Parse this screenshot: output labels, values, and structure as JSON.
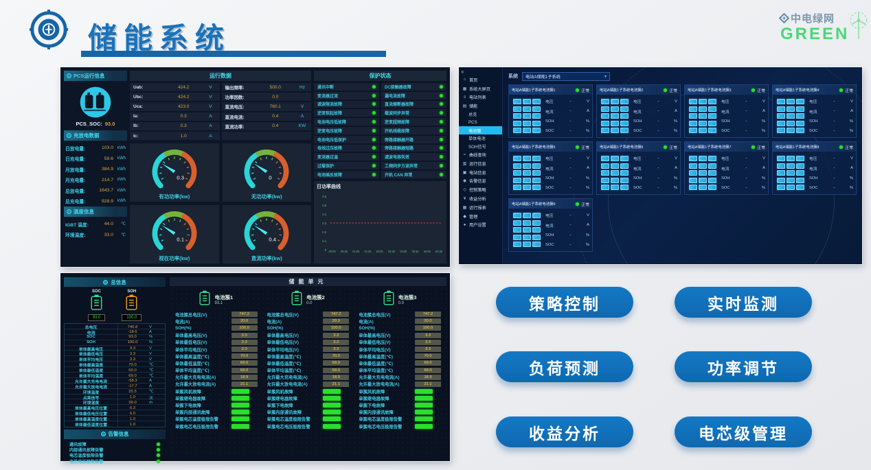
{
  "header": {
    "title": "储能系统",
    "logo_icon": "compass-badge-icon",
    "brand": {
      "icon": "diamond-grid-icon",
      "name": "中电绿网",
      "sub": "GREEN",
      "turbine_icon": "wind-turbine-icon"
    }
  },
  "pcs": {
    "info_header": "PCS运行信息",
    "battery_icon": "battery-circle-icon",
    "soc_label": "PCS_SOC:",
    "soc_value": "93.0",
    "energy_header": "充放电数据",
    "energy_rows": [
      {
        "label": "日放电量:",
        "value": "103.0",
        "unit": "kWh"
      },
      {
        "label": "日充电量:",
        "value": "59.6",
        "unit": "kWh"
      },
      {
        "label": "月放电量:",
        "value": "384.9",
        "unit": "kWh"
      },
      {
        "label": "月充电量:",
        "value": "214.7",
        "unit": "kWh"
      },
      {
        "label": "总放电量:",
        "value": "1643.7",
        "unit": "kWh"
      },
      {
        "label": "总充电量:",
        "value": "928.9",
        "unit": "kWh"
      }
    ],
    "temp_header": "温度信息",
    "temp_rows": [
      {
        "label": "IGBT 温度:",
        "value": "44.0",
        "unit": "℃"
      },
      {
        "label": "环境温度:",
        "value": "33.0",
        "unit": "℃"
      }
    ],
    "run_header": "运行数据",
    "run_left": [
      {
        "label": "Uab:",
        "value": "424.2",
        "unit": "V"
      },
      {
        "label": "Ubc:",
        "value": "424.2",
        "unit": "V"
      },
      {
        "label": "Uca:",
        "value": "423.0",
        "unit": "V"
      },
      {
        "label": "Ia:",
        "value": "0.3",
        "unit": "A"
      },
      {
        "label": "Ib:",
        "value": "0.3",
        "unit": "A"
      },
      {
        "label": "Ic:",
        "value": "1.0",
        "unit": "A"
      }
    ],
    "run_right": [
      {
        "label": "输出频率:",
        "value": "500.0",
        "unit": "Hz"
      },
      {
        "label": "功率因数:",
        "value": "0.0",
        "unit": ""
      },
      {
        "label": "直流电压:",
        "value": "760.1",
        "unit": "V"
      },
      {
        "label": "直流电流:",
        "value": "0.4",
        "unit": "A"
      },
      {
        "label": "直流功率:",
        "value": "0.4",
        "unit": "KW"
      },
      {
        "label": "",
        "value": "",
        "unit": ""
      }
    ],
    "gauges": [
      {
        "label": "有功功率(kw)",
        "value": "0.3"
      },
      {
        "label": "无功功率(kw)",
        "value": "0"
      },
      {
        "label": "视在功率(kw)",
        "value": "0.1"
      },
      {
        "label": "直流功率(kw)",
        "value": "0.4"
      }
    ],
    "protect_header": "保护状态",
    "protect_left": [
      "通讯中断",
      "变流器过流",
      "滤波限流故障",
      "逆变软起故障",
      "电池电压低故障",
      "逆变电压故障",
      "电池电压低保护",
      "母线过压故障",
      "变流器过温",
      "过载保护",
      "电池插反故障"
    ],
    "protect_right": [
      "DC接触器故障",
      "漏电流故障",
      "直流熔断器故障",
      "载波同步异常",
      "逆变超频故障",
      "开机线缆故障",
      "旁路接触器开路",
      "旁路接触器短路",
      "滤波电容失效",
      "工频同步方波异常",
      "开机 CAN 异常"
    ],
    "chart": {
      "type": "line",
      "title": "日功率曲线",
      "x": [
        "00:00",
        "00:30",
        "01:00",
        "01:30",
        "02:00",
        "02:30",
        "03:00",
        "03:30",
        "04:00",
        "04:30"
      ],
      "y_ticks": [
        "0.6",
        "0.5",
        "0.4",
        "0.3",
        "0.2",
        "0.1",
        "0"
      ],
      "ylim": [
        0,
        0.6
      ],
      "series": [
        {
          "name": "日功率",
          "values": [
            0.3,
            0.3,
            0.3,
            0.3,
            0.3,
            0.3,
            0.3,
            0.3,
            0.3,
            0.3
          ],
          "color": "#e03a2e",
          "style": "dashed"
        }
      ]
    }
  },
  "bms": {
    "collapse_icon": "collapse-arrows-icon",
    "collapse_glyph": "«",
    "sidebar": [
      {
        "label": "首页",
        "icon": "home-icon",
        "glyph": "⌂"
      },
      {
        "label": "系统大屏页",
        "icon": "dashboard-icon",
        "glyph": "▦"
      },
      {
        "label": "电站列表",
        "icon": "station-list-icon",
        "glyph": "≡"
      },
      {
        "label": "储能",
        "icon": "storage-icon",
        "glyph": "▤"
      },
      {
        "label": "总览",
        "sub": true
      },
      {
        "label": "PCS",
        "sub": true
      },
      {
        "label": "电池簇",
        "sub": true,
        "active": true
      },
      {
        "label": "单体电池",
        "sub": true
      },
      {
        "label": "SOH信号",
        "sub": true
      },
      {
        "label": "曲线查询",
        "icon": "curve-icon",
        "glyph": "≈"
      },
      {
        "label": "运行信息",
        "icon": "run-info-icon",
        "glyph": "▥"
      },
      {
        "label": "电站信息",
        "icon": "station-info-icon",
        "glyph": "▣"
      },
      {
        "label": "告警信息",
        "icon": "alarm-icon",
        "glyph": "◉"
      },
      {
        "label": "控制策略",
        "icon": "strategy-icon",
        "glyph": "◇"
      },
      {
        "label": "收益分析",
        "icon": "revenue-icon",
        "glyph": "¥"
      },
      {
        "label": "运行报表",
        "icon": "report-icon",
        "glyph": "▦"
      },
      {
        "label": "管理",
        "icon": "manage-icon",
        "glyph": "◆"
      },
      {
        "label": "用户设置",
        "icon": "user-icon",
        "glyph": "●"
      }
    ],
    "system_label": "系统",
    "system_value": "电站A储能1子系统",
    "card_status": "正常",
    "card_fields": [
      {
        "label": "电压",
        "value": "-",
        "unit": "V"
      },
      {
        "label": "电流",
        "value": "-",
        "unit": "A"
      },
      {
        "label": "SOH",
        "value": "-",
        "unit": "%"
      },
      {
        "label": "SOC",
        "value": "-",
        "unit": "%"
      }
    ],
    "cards": [
      "电站A储能1子系统电池簇1",
      "电站A储能1子系统电池簇2",
      "电站A储能1子系统电池簇3",
      "电站A储能1子系统电池簇4",
      "电站A储能1子系统电池簇5",
      "电站A储能1子系统电池簇6",
      "电站A储能1子系统电池簇7",
      "电站A储能1子系统电池簇8",
      "电站A储能1子系统电池簇9"
    ]
  },
  "unit": {
    "info_header": "总信息",
    "soc": {
      "label": "SOC",
      "value": "93.0",
      "color": "#35d98a"
    },
    "soh": {
      "label": "SOH",
      "value": "100.0",
      "color": "#e8951f"
    },
    "info_rows": [
      {
        "label": "总电压",
        "value": "746.8",
        "unit": "V"
      },
      {
        "label": "电流",
        "value": "-18.6",
        "unit": "A"
      },
      {
        "label": "SOC",
        "value": "93.0",
        "unit": "%"
      },
      {
        "label": "SOH",
        "value": "100.0",
        "unit": "%"
      },
      {
        "label": "单体最高电压",
        "value": "3.3",
        "unit": "V"
      },
      {
        "label": "单体最低电压",
        "value": "3.3",
        "unit": "V"
      },
      {
        "label": "单体平均电压",
        "value": "3.3",
        "unit": "V"
      },
      {
        "label": "单体最高温度",
        "value": "70.0",
        "unit": "℃"
      },
      {
        "label": "单体最低温度",
        "value": "69.0",
        "unit": "℃"
      },
      {
        "label": "单体平均温度",
        "value": "69.0",
        "unit": "℃"
      },
      {
        "label": "允许最大充电电流",
        "value": "-58.3",
        "unit": "A"
      },
      {
        "label": "允许最大放电电流",
        "value": "-17.7",
        "unit": "A"
      },
      {
        "label": "环境温度",
        "value": "25.5",
        "unit": "℃"
      },
      {
        "label": "点亮信号",
        "value": "1.0",
        "unit": "次"
      },
      {
        "label": "环境湿度",
        "value": "39.0",
        "unit": "rh"
      },
      {
        "label": "单体最高电压位置",
        "value": "0.3",
        "unit": ""
      },
      {
        "label": "单体最低电压位置",
        "value": "6.0",
        "unit": ""
      },
      {
        "label": "单体最高温度位置",
        "value": "1.0",
        "unit": ""
      },
      {
        "label": "单体最低温度位置",
        "value": "1.0",
        "unit": ""
      }
    ],
    "alarm_header": "告警信息",
    "alarm_rows": [
      "通讯故障",
      "内部通讯故障告警",
      "电芯温度极限告警",
      "电芯电压极限告警"
    ],
    "main_header": "储能单元",
    "clusters": [
      {
        "name": "电池簇1",
        "soc": "93.1"
      },
      {
        "name": "电池簇2",
        "soc": "0.0"
      },
      {
        "name": "电池簇3",
        "soc": "0.0"
      }
    ],
    "cluster_rows": [
      {
        "label": "电池簇总电压(V)",
        "value": "747.2"
      },
      {
        "label": "电流(A)",
        "value": "20.0"
      },
      {
        "label": "SOH(%)",
        "value": "100.0"
      },
      {
        "label": "单体最高电压(V)",
        "value": "3.3"
      },
      {
        "label": "单体最低电压(V)",
        "value": "3.3"
      },
      {
        "label": "单体平均电压(V)",
        "value": "3.3"
      },
      {
        "label": "单体最高温度(℃)",
        "value": "70.0"
      },
      {
        "label": "单体最低温度(℃)",
        "value": "69.0"
      },
      {
        "label": "单体平均温度(℃)",
        "value": "69.0"
      },
      {
        "label": "允许最大充电电流(A)",
        "value": "18.9"
      },
      {
        "label": "允许最大放电电流(A)",
        "value": "21.1"
      }
    ],
    "cluster_status_rows": [
      "单簇风机故障",
      "单簇继电器故障",
      "单簇下电故障",
      "单簇内部通讯故障",
      "单簇电芯温度极限告警",
      "单簇电芯电压极限告警"
    ]
  },
  "buttons": [
    "策略控制",
    "实时监测",
    "负荷预测",
    "功率调节",
    "收益分析",
    "电芯级管理"
  ],
  "colors": {
    "accent_blue": "#1b72b9",
    "button_blue": "#1173bc",
    "cyan": "#3fc9e0",
    "value_yellow": "#d9a43c",
    "status_green": "#2ae02a",
    "brand_green": "#49d877"
  }
}
